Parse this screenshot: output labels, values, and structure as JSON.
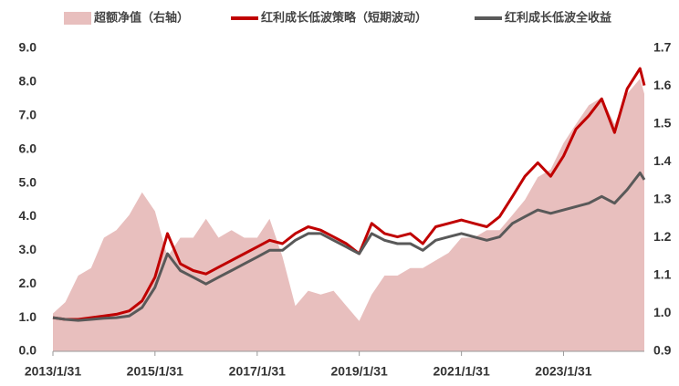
{
  "chart_data": {
    "type": "line",
    "legend": "top",
    "x": [
      "2013/1/31",
      "2013/4/30",
      "2013/7/31",
      "2013/10/31",
      "2014/1/31",
      "2014/4/30",
      "2014/7/31",
      "2014/10/31",
      "2015/1/31",
      "2015/4/30",
      "2015/7/31",
      "2015/10/31",
      "2016/1/31",
      "2016/4/30",
      "2016/7/31",
      "2016/10/31",
      "2017/1/31",
      "2017/4/30",
      "2017/7/31",
      "2017/10/31",
      "2018/1/31",
      "2018/4/30",
      "2018/7/31",
      "2018/10/31",
      "2019/1/31",
      "2019/4/30",
      "2019/7/31",
      "2019/10/31",
      "2020/1/31",
      "2020/4/30",
      "2020/7/31",
      "2020/10/31",
      "2021/1/31",
      "2021/4/30",
      "2021/7/31",
      "2021/10/31",
      "2022/1/31",
      "2022/4/30",
      "2022/7/31",
      "2022/10/31",
      "2023/1/31",
      "2023/4/30",
      "2023/7/31",
      "2023/10/31",
      "2024/1/31",
      "2024/4/30",
      "2024/7/31",
      "2024/8/31"
    ],
    "series": [
      {
        "name": "超额净值（右轴）",
        "type": "area",
        "axis": "y2",
        "color": "#e8bfbe",
        "values": [
          1.0,
          1.03,
          1.1,
          1.12,
          1.2,
          1.22,
          1.26,
          1.32,
          1.27,
          1.15,
          1.2,
          1.2,
          1.25,
          1.2,
          1.22,
          1.2,
          1.2,
          1.25,
          1.15,
          1.02,
          1.06,
          1.05,
          1.06,
          1.02,
          0.98,
          1.05,
          1.1,
          1.1,
          1.12,
          1.12,
          1.14,
          1.16,
          1.2,
          1.2,
          1.22,
          1.22,
          1.26,
          1.3,
          1.36,
          1.38,
          1.45,
          1.5,
          1.55,
          1.57,
          1.5,
          1.58,
          1.62,
          1.58
        ]
      },
      {
        "name": "红利成长低波策略（短期波动）",
        "type": "line",
        "color": "#c00000",
        "values": [
          1.0,
          0.95,
          0.95,
          1.0,
          1.05,
          1.1,
          1.2,
          1.5,
          2.2,
          3.5,
          2.6,
          2.4,
          2.3,
          2.5,
          2.7,
          2.9,
          3.1,
          3.3,
          3.2,
          3.5,
          3.7,
          3.6,
          3.4,
          3.2,
          2.9,
          3.8,
          3.5,
          3.4,
          3.5,
          3.2,
          3.7,
          3.8,
          3.9,
          3.8,
          3.7,
          4.0,
          4.6,
          5.2,
          5.6,
          5.2,
          5.8,
          6.6,
          7.0,
          7.5,
          6.5,
          7.8,
          8.4,
          7.9
        ]
      },
      {
        "name": "红利成长低波全收益",
        "type": "line",
        "color": "#595959",
        "values": [
          1.0,
          0.95,
          0.92,
          0.95,
          0.98,
          1.0,
          1.05,
          1.3,
          1.9,
          2.9,
          2.4,
          2.2,
          2.0,
          2.2,
          2.4,
          2.6,
          2.8,
          3.0,
          3.0,
          3.3,
          3.5,
          3.5,
          3.3,
          3.1,
          2.9,
          3.5,
          3.3,
          3.2,
          3.2,
          3.0,
          3.3,
          3.4,
          3.5,
          3.4,
          3.3,
          3.4,
          3.8,
          4.0,
          4.2,
          4.1,
          4.2,
          4.3,
          4.4,
          4.6,
          4.4,
          4.8,
          5.3,
          5.1
        ]
      }
    ],
    "xlim": [
      "2013/1/31",
      "2024/8/31"
    ],
    "xticks": [
      "2013/1/31",
      "2015/1/31",
      "2017/1/31",
      "2019/1/31",
      "2021/1/31",
      "2023/1/31"
    ],
    "ylim": [
      0,
      9
    ],
    "yticks": [
      {
        "value": 0,
        "label": "0.0"
      },
      {
        "value": 1,
        "label": "1.0"
      },
      {
        "value": 2,
        "label": "2.0"
      },
      {
        "value": 3,
        "label": "3.0"
      },
      {
        "value": 4,
        "label": "4.0"
      },
      {
        "value": 5,
        "label": "5.0"
      },
      {
        "value": 6,
        "label": "6.0"
      },
      {
        "value": 7,
        "label": "7.0"
      },
      {
        "value": 8,
        "label": "8.0"
      },
      {
        "value": 9,
        "label": "9.0"
      }
    ],
    "y2lim": [
      0.9,
      1.7
    ],
    "y2ticks": [
      0.9,
      {
        "value": 1,
        "label": "1.0"
      },
      1.1,
      1.2,
      1.3,
      1.4,
      1.5,
      1.6,
      1.7
    ]
  }
}
